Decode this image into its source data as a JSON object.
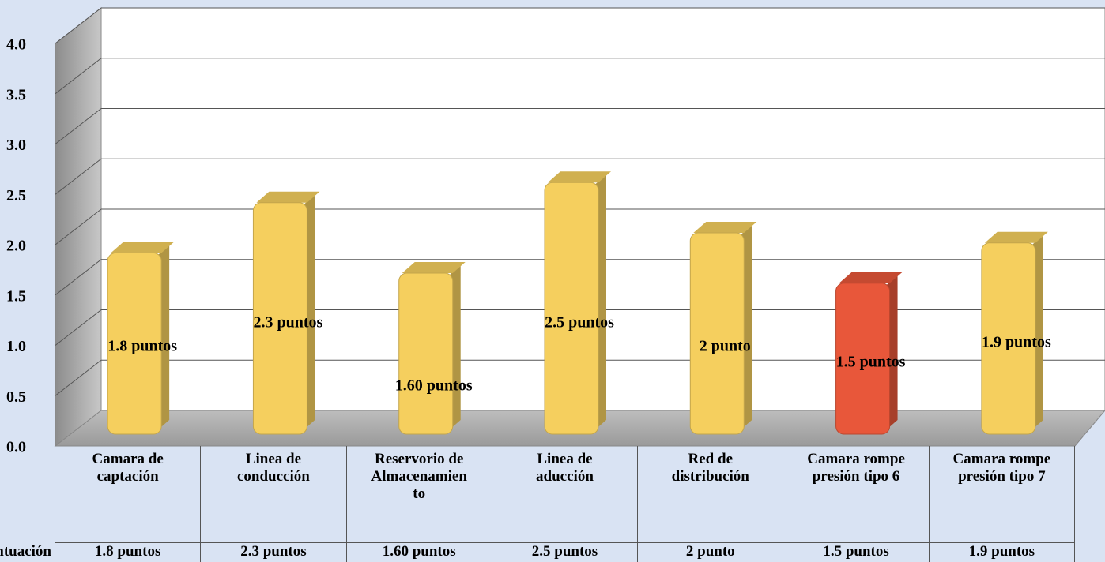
{
  "chart_data": {
    "type": "bar3d",
    "categories": [
      "Camara de captación",
      "Linea de conducción",
      "Reservorio de Almacenamiento",
      "Linea de aducción",
      "Red de distribución",
      "Camara rompe presión tipo 6",
      "Camara rompe presión tipo 7"
    ],
    "series": [
      {
        "name": "Puntuación",
        "colors": [
          "#f5cf5e",
          "#f5cf5e",
          "#f5cf5e",
          "#f5cf5e",
          "#f5cf5e",
          "#e8573a",
          "#f5cf5e"
        ],
        "values": [
          1.8,
          2.3,
          1.6,
          2.5,
          2,
          1.5,
          1.9
        ],
        "value_labels": [
          "1.8 puntos",
          "2.3 puntos",
          "1.60 puntos",
          "2.5 puntos",
          "2 punto",
          "1.5 puntos",
          "1.9 puntos"
        ]
      }
    ],
    "ylim": [
      0,
      4
    ],
    "yticks": [
      {
        "value": 0,
        "label": "0.0"
      },
      0.5,
      {
        "value": 1,
        "label": "1.0"
      },
      1.5,
      {
        "value": 2,
        "label": "2.0"
      },
      2.5,
      {
        "value": 3,
        "label": "3.0"
      },
      3.5,
      {
        "value": 4,
        "label": "4.0"
      }
    ],
    "grid": true
  }
}
